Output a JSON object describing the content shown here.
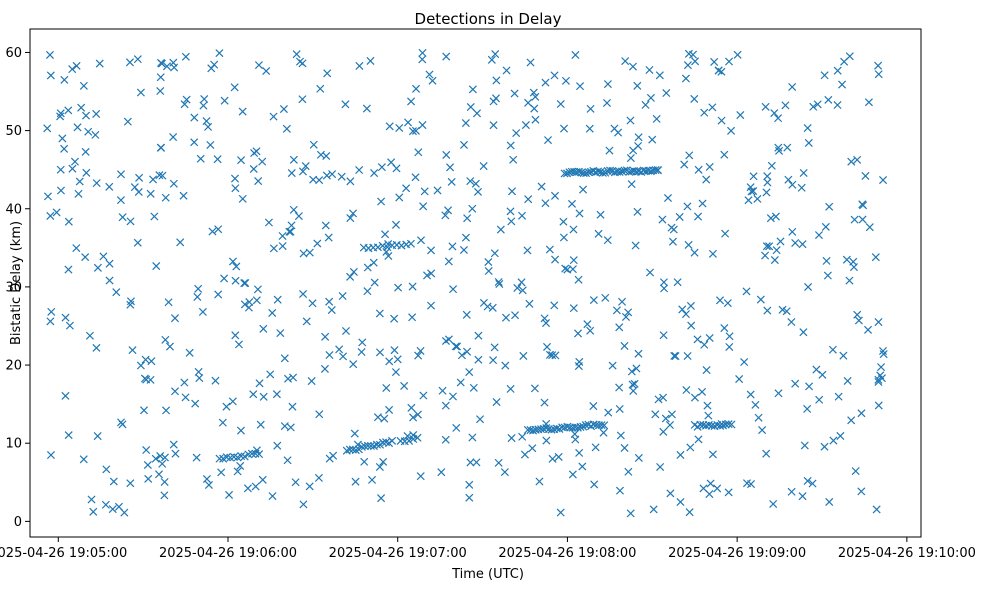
{
  "chart_data": {
    "type": "scatter",
    "title": "Detections in Delay",
    "xlabel": "Time (UTC)",
    "ylabel": "Bistatic Delay (km)",
    "marker": "x",
    "color": "#1f77b4",
    "grid": false,
    "legend": "none",
    "x_start": "2025-04-26 19:04:50",
    "xlim_seconds": [
      0,
      315
    ],
    "ylim": [
      -2,
      63
    ],
    "x_ticks": [
      {
        "label": "2025-04-26 19:05:00",
        "value": 10
      },
      {
        "label": "2025-04-26 19:06:00",
        "value": 70
      },
      {
        "label": "2025-04-26 19:07:00",
        "value": 130
      },
      {
        "label": "2025-04-26 19:08:00",
        "value": 190
      },
      {
        "label": "2025-04-26 19:09:00",
        "value": 250
      },
      {
        "label": "2025-04-26 19:10:00",
        "value": 310
      }
    ],
    "y_ticks": [
      0,
      10,
      20,
      30,
      40,
      50,
      60
    ],
    "tracks": [
      {
        "t_start": 67,
        "t_end": 81,
        "delay_start": 8.1,
        "delay_end": 8.6,
        "count": 12
      },
      {
        "t_start": 112,
        "t_end": 128,
        "delay_start": 9.0,
        "delay_end": 10.2,
        "count": 16
      },
      {
        "t_start": 131,
        "t_end": 137,
        "delay_start": 10.3,
        "delay_end": 10.6,
        "count": 5
      },
      {
        "t_start": 176,
        "t_end": 203,
        "delay_start": 11.6,
        "delay_end": 12.4,
        "count": 30
      },
      {
        "t_start": 235,
        "t_end": 248,
        "delay_start": 12.2,
        "delay_end": 12.4,
        "count": 14
      },
      {
        "t_start": 189,
        "t_end": 222,
        "delay_start": 44.6,
        "delay_end": 44.9,
        "count": 40
      },
      {
        "t_start": 118,
        "t_end": 133,
        "delay_start": 35.0,
        "delay_end": 35.3,
        "count": 10
      }
    ],
    "clutter": {
      "count": 760,
      "t_range": [
        5,
        302
      ],
      "delay_range": [
        1,
        60
      ],
      "seed": 42
    }
  }
}
